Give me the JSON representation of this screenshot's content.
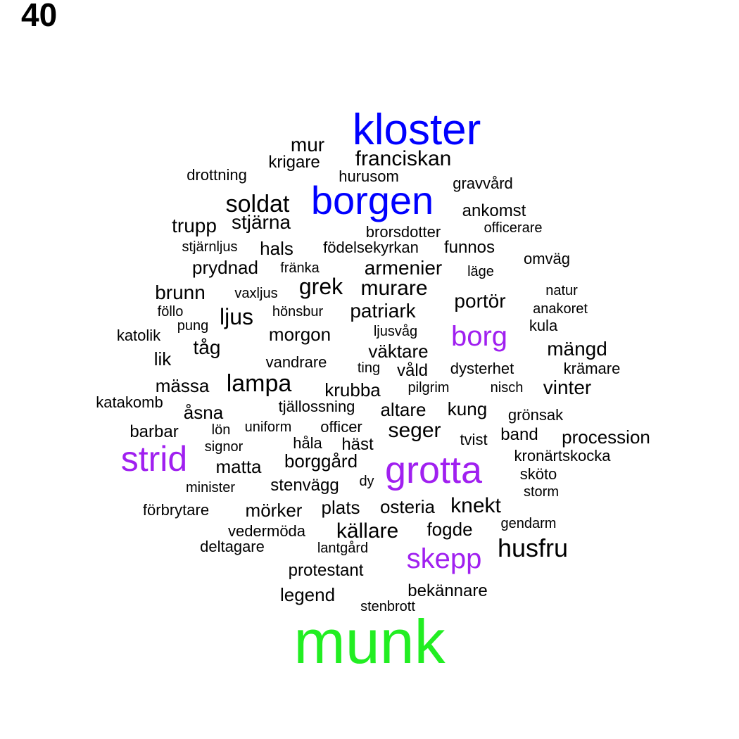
{
  "page_label": "40",
  "colors": {
    "black": "#000000",
    "blue": "#0000ff",
    "purple": "#a020f0",
    "green": "#22ee22"
  },
  "words": [
    {
      "text": "kloster",
      "color": "blue"
    },
    {
      "text": "borgen",
      "color": "blue"
    },
    {
      "text": "munk",
      "color": "green"
    },
    {
      "text": "grotta",
      "color": "purple"
    },
    {
      "text": "strid",
      "color": "purple"
    },
    {
      "text": "skepp",
      "color": "purple"
    },
    {
      "text": "borg",
      "color": "purple"
    },
    {
      "text": "mur",
      "color": "black"
    },
    {
      "text": "franciskan",
      "color": "black"
    },
    {
      "text": "krigare",
      "color": "black"
    },
    {
      "text": "drottning",
      "color": "black"
    },
    {
      "text": "hurusom",
      "color": "black"
    },
    {
      "text": "gravvård",
      "color": "black"
    },
    {
      "text": "soldat",
      "color": "black"
    },
    {
      "text": "ankomst",
      "color": "black"
    },
    {
      "text": "trupp",
      "color": "black"
    },
    {
      "text": "stjärna",
      "color": "black"
    },
    {
      "text": "brorsdotter",
      "color": "black"
    },
    {
      "text": "officerare",
      "color": "black"
    },
    {
      "text": "stjärnljus",
      "color": "black"
    },
    {
      "text": "hals",
      "color": "black"
    },
    {
      "text": "födelsekyrkan",
      "color": "black"
    },
    {
      "text": "funnos",
      "color": "black"
    },
    {
      "text": "omväg",
      "color": "black"
    },
    {
      "text": "prydnad",
      "color": "black"
    },
    {
      "text": "fränka",
      "color": "black"
    },
    {
      "text": "armenier",
      "color": "black"
    },
    {
      "text": "läge",
      "color": "black"
    },
    {
      "text": "brunn",
      "color": "black"
    },
    {
      "text": "vaxljus",
      "color": "black"
    },
    {
      "text": "grek",
      "color": "black"
    },
    {
      "text": "murare",
      "color": "black"
    },
    {
      "text": "portör",
      "color": "black"
    },
    {
      "text": "natur",
      "color": "black"
    },
    {
      "text": "föllo",
      "color": "black"
    },
    {
      "text": "ljus",
      "color": "black"
    },
    {
      "text": "hönsbur",
      "color": "black"
    },
    {
      "text": "patriark",
      "color": "black"
    },
    {
      "text": "anakoret",
      "color": "black"
    },
    {
      "text": "pung",
      "color": "black"
    },
    {
      "text": "kula",
      "color": "black"
    },
    {
      "text": "katolik",
      "color": "black"
    },
    {
      "text": "morgon",
      "color": "black"
    },
    {
      "text": "ljusvåg",
      "color": "black"
    },
    {
      "text": "tåg",
      "color": "black"
    },
    {
      "text": "väktare",
      "color": "black"
    },
    {
      "text": "mängd",
      "color": "black"
    },
    {
      "text": "lik",
      "color": "black"
    },
    {
      "text": "vandrare",
      "color": "black"
    },
    {
      "text": "ting",
      "color": "black"
    },
    {
      "text": "våld",
      "color": "black"
    },
    {
      "text": "dysterhet",
      "color": "black"
    },
    {
      "text": "krämare",
      "color": "black"
    },
    {
      "text": "mässa",
      "color": "black"
    },
    {
      "text": "lampa",
      "color": "black"
    },
    {
      "text": "krubba",
      "color": "black"
    },
    {
      "text": "pilgrim",
      "color": "black"
    },
    {
      "text": "nisch",
      "color": "black"
    },
    {
      "text": "vinter",
      "color": "black"
    },
    {
      "text": "katakomb",
      "color": "black"
    },
    {
      "text": "tjällossning",
      "color": "black"
    },
    {
      "text": "åsna",
      "color": "black"
    },
    {
      "text": "altare",
      "color": "black"
    },
    {
      "text": "kung",
      "color": "black"
    },
    {
      "text": "grönsak",
      "color": "black"
    },
    {
      "text": "barbar",
      "color": "black"
    },
    {
      "text": "lön",
      "color": "black"
    },
    {
      "text": "uniform",
      "color": "black"
    },
    {
      "text": "officer",
      "color": "black"
    },
    {
      "text": "seger",
      "color": "black"
    },
    {
      "text": "band",
      "color": "black"
    },
    {
      "text": "procession",
      "color": "black"
    },
    {
      "text": "signor",
      "color": "black"
    },
    {
      "text": "håla",
      "color": "black"
    },
    {
      "text": "häst",
      "color": "black"
    },
    {
      "text": "tvist",
      "color": "black"
    },
    {
      "text": "kronärtskocka",
      "color": "black"
    },
    {
      "text": "matta",
      "color": "black"
    },
    {
      "text": "borggård",
      "color": "black"
    },
    {
      "text": "sköto",
      "color": "black"
    },
    {
      "text": "minister",
      "color": "black"
    },
    {
      "text": "stenvägg",
      "color": "black"
    },
    {
      "text": "dy",
      "color": "black"
    },
    {
      "text": "storm",
      "color": "black"
    },
    {
      "text": "förbrytare",
      "color": "black"
    },
    {
      "text": "mörker",
      "color": "black"
    },
    {
      "text": "plats",
      "color": "black"
    },
    {
      "text": "osteria",
      "color": "black"
    },
    {
      "text": "knekt",
      "color": "black"
    },
    {
      "text": "gendarm",
      "color": "black"
    },
    {
      "text": "vedermöda",
      "color": "black"
    },
    {
      "text": "källare",
      "color": "black"
    },
    {
      "text": "fogde",
      "color": "black"
    },
    {
      "text": "deltagare",
      "color": "black"
    },
    {
      "text": "lantgård",
      "color": "black"
    },
    {
      "text": "husfru",
      "color": "black"
    },
    {
      "text": "protestant",
      "color": "black"
    },
    {
      "text": "legend",
      "color": "black"
    },
    {
      "text": "bekännare",
      "color": "black"
    },
    {
      "text": "stenbrott",
      "color": "black"
    }
  ]
}
